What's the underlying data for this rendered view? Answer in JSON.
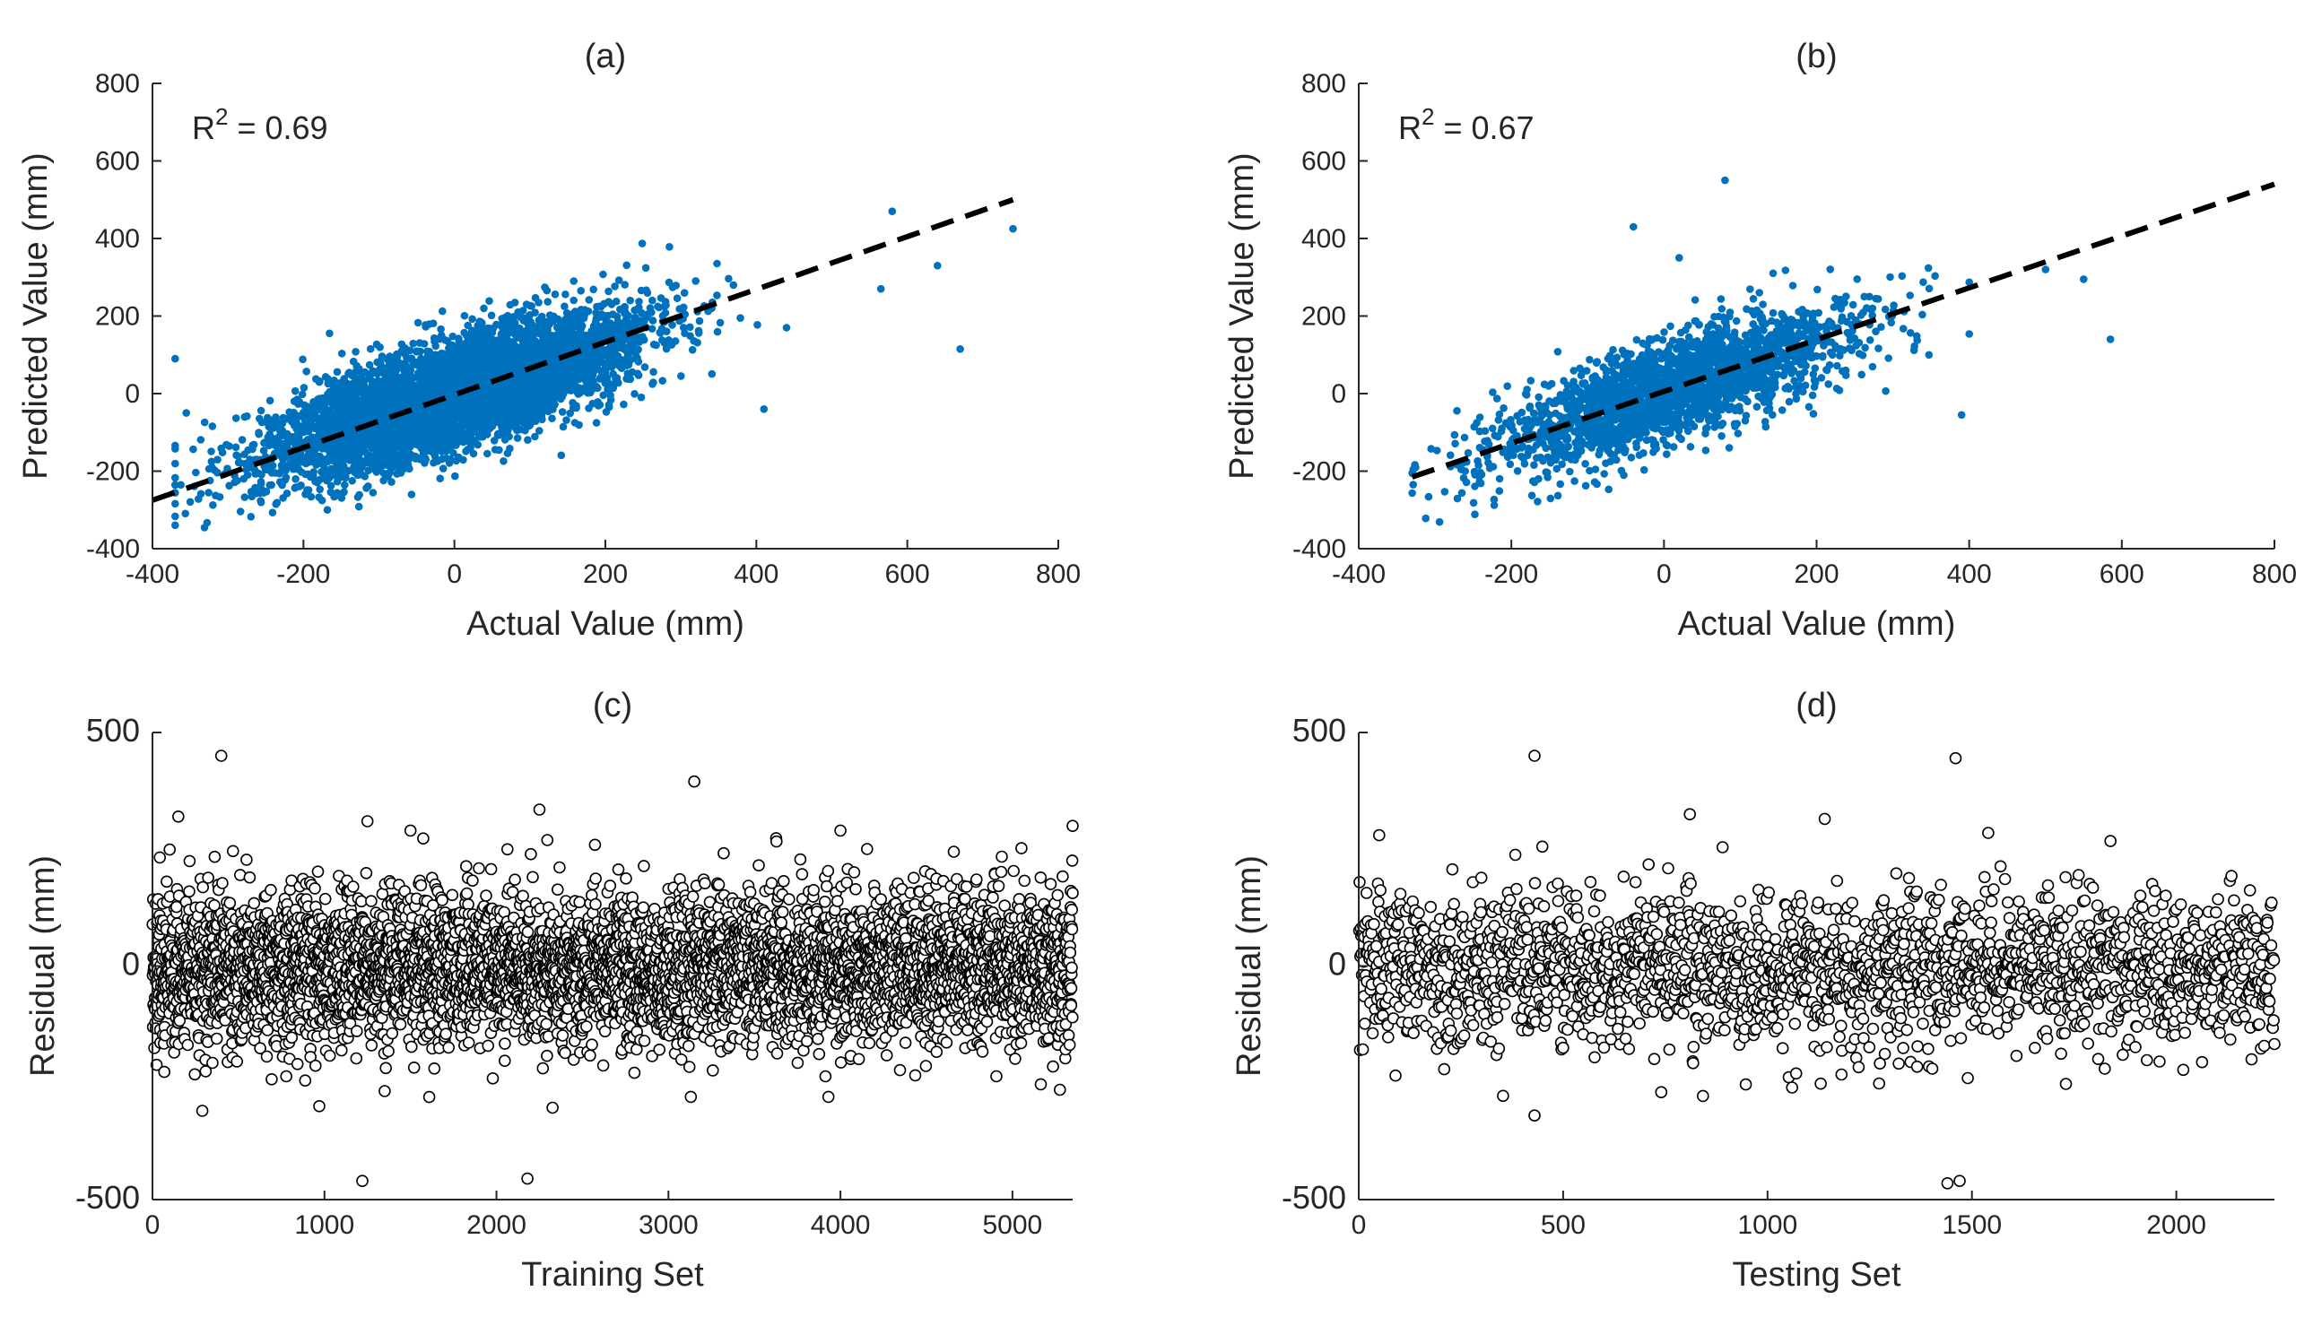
{
  "figure": {
    "panels": [
      "(a)",
      "(b)",
      "(c)",
      "(d)"
    ]
  },
  "colors": {
    "scatter": "#0072BD",
    "fit_line": "#000000",
    "residual_marker": "#000000",
    "axis": "#262626"
  },
  "chart_data": [
    {
      "id": "a",
      "type": "scatter",
      "title": "(a)",
      "xlabel": "Actual Value (mm)",
      "ylabel": "Predicted Value (mm)",
      "xlim": [
        -400,
        800
      ],
      "ylim": [
        -400,
        800
      ],
      "xticks": [
        -400,
        -200,
        0,
        200,
        400,
        600,
        800
      ],
      "yticks": [
        -400,
        -200,
        0,
        200,
        400,
        600,
        800
      ],
      "annotation": {
        "base": "R",
        "sup": "2",
        "rest": " = 0.69"
      },
      "fit_line": {
        "x": [
          -400,
          740
        ],
        "y": [
          -275,
          500
        ]
      },
      "cloud": {
        "n": 5350,
        "slope": 0.62,
        "intercept": -2,
        "x_mean": 0,
        "x_sd": 120,
        "x_min": -370,
        "x_max": 440,
        "noise_sd": 68,
        "seed": 11
      },
      "outliers": [
        [
          580,
          470
        ],
        [
          740,
          425
        ],
        [
          640,
          330
        ],
        [
          565,
          270
        ],
        [
          670,
          115
        ],
        [
          410,
          -40
        ],
        [
          -370,
          90
        ],
        [
          440,
          170
        ]
      ]
    },
    {
      "id": "b",
      "type": "scatter",
      "title": "(b)",
      "xlabel": "Actual Value (mm)",
      "ylabel": "Predicted Value (mm)",
      "xlim": [
        -400,
        800
      ],
      "ylim": [
        -400,
        800
      ],
      "xticks": [
        -400,
        -200,
        0,
        200,
        400,
        600,
        800
      ],
      "yticks": [
        -400,
        -200,
        0,
        200,
        400,
        600,
        800
      ],
      "annotation": {
        "base": "R",
        "sup": "2",
        "rest": " = 0.67"
      },
      "fit_line": {
        "x": [
          -330,
          800
        ],
        "y": [
          -215,
          540
        ]
      },
      "cloud": {
        "n": 2240,
        "slope": 0.64,
        "intercept": 3,
        "x_mean": 10,
        "x_sd": 118,
        "x_min": -330,
        "x_max": 400,
        "noise_sd": 65,
        "seed": 23
      },
      "outliers": [
        [
          80,
          550
        ],
        [
          -40,
          430
        ],
        [
          585,
          140
        ],
        [
          550,
          295
        ],
        [
          500,
          320
        ],
        [
          390,
          -55
        ],
        [
          20,
          350
        ]
      ]
    },
    {
      "id": "c",
      "type": "scatter",
      "title": "(c)",
      "xlabel": "Training Set",
      "ylabel": "Residual (mm)",
      "xlim": [
        0,
        5350
      ],
      "ylim": [
        -500,
        500
      ],
      "xticks": [
        0,
        1000,
        2000,
        3000,
        4000,
        5000
      ],
      "yticks": [
        -500,
        0,
        500
      ],
      "residuals": {
        "n": 5350,
        "mean": -5,
        "sd": 82,
        "clip": 330,
        "seed": 37
      },
      "outliers": [
        [
          400,
          450
        ],
        [
          3150,
          395
        ],
        [
          2250,
          335
        ],
        [
          150,
          320
        ],
        [
          1250,
          310
        ],
        [
          1220,
          -460
        ],
        [
          2180,
          -455
        ],
        [
          290,
          -310
        ],
        [
          970,
          -300
        ],
        [
          3130,
          -280
        ],
        [
          3930,
          -280
        ],
        [
          1500,
          290
        ],
        [
          4000,
          290
        ],
        [
          5350,
          300
        ]
      ]
    },
    {
      "id": "d",
      "type": "scatter",
      "title": "(d)",
      "xlabel": "Testing Set",
      "ylabel": "Residual (mm)",
      "xlim": [
        0,
        2240
      ],
      "ylim": [
        -500,
        500
      ],
      "xticks": [
        0,
        500,
        1000,
        1500,
        2000
      ],
      "yticks": [
        -500,
        0,
        500
      ],
      "residuals": {
        "n": 2240,
        "mean": -5,
        "sd": 80,
        "clip": 320,
        "seed": 53
      },
      "outliers": [
        [
          430,
          450
        ],
        [
          1460,
          445
        ],
        [
          810,
          325
        ],
        [
          1140,
          315
        ],
        [
          50,
          280
        ],
        [
          1540,
          285
        ],
        [
          430,
          -320
        ],
        [
          740,
          -270
        ],
        [
          1440,
          -465
        ],
        [
          1470,
          -460
        ],
        [
          1060,
          -260
        ],
        [
          1070,
          -230
        ]
      ]
    }
  ]
}
